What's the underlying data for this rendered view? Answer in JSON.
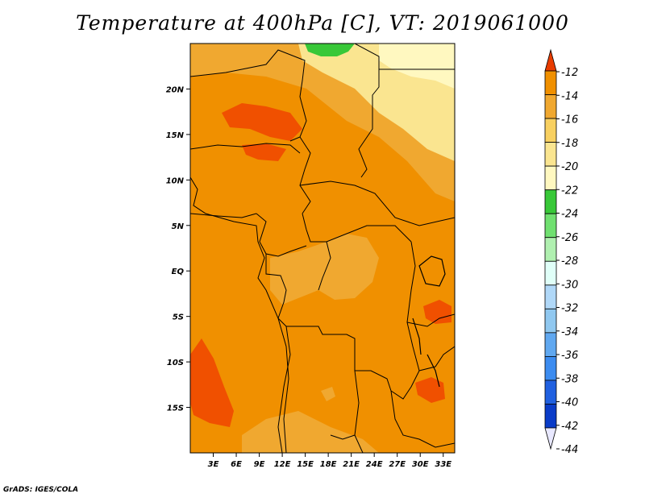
{
  "title": "Temperature at 400hPa [C], VT: 2019061000",
  "credit": "GrADS: IGES/COLA",
  "map": {
    "lon_range": [
      0,
      34.5
    ],
    "lat_range": [
      -20,
      25
    ],
    "lat_ticks": [
      {
        "value": 20,
        "label": "20N"
      },
      {
        "value": 15,
        "label": "15N"
      },
      {
        "value": 10,
        "label": "10N"
      },
      {
        "value": 5,
        "label": "5N"
      },
      {
        "value": 0,
        "label": "EQ"
      },
      {
        "value": -5,
        "label": "5S"
      },
      {
        "value": -10,
        "label": "10S"
      },
      {
        "value": -15,
        "label": "15S"
      }
    ],
    "lon_ticks": [
      {
        "value": 3,
        "label": "3E"
      },
      {
        "value": 6,
        "label": "6E"
      },
      {
        "value": 9,
        "label": "9E"
      },
      {
        "value": 12,
        "label": "12E"
      },
      {
        "value": 15,
        "label": "15E"
      },
      {
        "value": 18,
        "label": "18E"
      },
      {
        "value": 21,
        "label": "21E"
      },
      {
        "value": 24,
        "label": "24E"
      },
      {
        "value": 27,
        "label": "27E"
      },
      {
        "value": 30,
        "label": "30E"
      },
      {
        "value": 33,
        "label": "33E"
      }
    ]
  },
  "colorbar": {
    "labels": [
      "-12",
      "-14",
      "-16",
      "-18",
      "-20",
      "-22",
      "-24",
      "-26",
      "-28",
      "-30",
      "-32",
      "-34",
      "-36",
      "-38",
      "-40",
      "-42",
      "-44"
    ],
    "colors": [
      "#f05000",
      "#f09000",
      "#f0a830",
      "#f8d060",
      "#fae590",
      "#fff8c0",
      "#38c838",
      "#70e070",
      "#b0f0b0",
      "#e0fff8",
      "#b0d8f8",
      "#90c8f0",
      "#60a8f0",
      "#3c8cf0",
      "#2060e0",
      "#0a3cc8",
      "#0a1478"
    ],
    "top_arrow_color": "#e83c00",
    "bottom_arrow_color": "#e8e8ff"
  },
  "colors": {
    "background_field": "#f09000",
    "warm_patch": "#f05000",
    "cool_patch": "#f0a830",
    "cooler_patch": "#fae590",
    "coolest_patch": "#fff8c0",
    "green_patch": "#38c838"
  }
}
